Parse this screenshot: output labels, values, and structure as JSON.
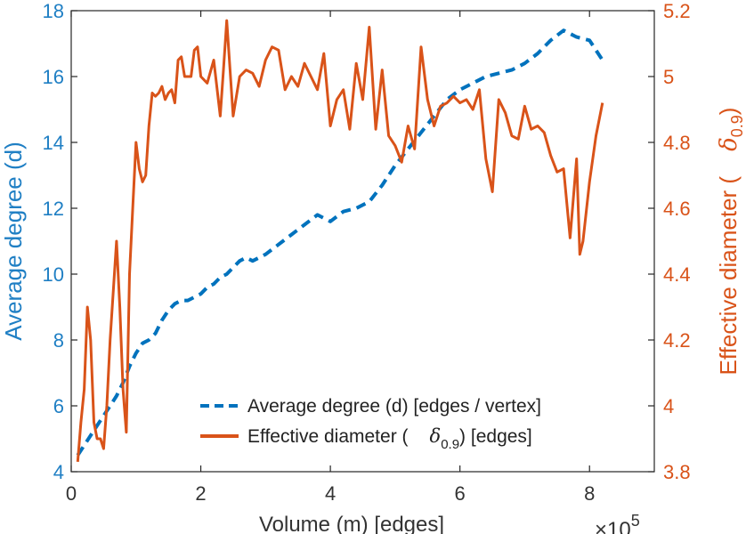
{
  "chart_data": {
    "type": "line",
    "title": "",
    "xlabel": "Volume (m) [edges]",
    "x_multiplier_label": "×10",
    "x_multiplier_exp": "5",
    "ylabel_left": "Average degree (d)",
    "ylabel_right_prefix": "Effective diameter (",
    "ylabel_right_symbol": "δ",
    "ylabel_right_subscript": "0.9",
    "ylabel_right_suffix": ")",
    "xlim": [
      0,
      9
    ],
    "ylim_left": [
      4,
      18
    ],
    "ylim_right": [
      3.8,
      5.2
    ],
    "x_ticks": [
      0,
      2,
      4,
      6,
      8
    ],
    "x_tick_labels": [
      "0",
      "2",
      "4",
      "6",
      "8"
    ],
    "y_left_ticks": [
      4,
      6,
      8,
      10,
      12,
      14,
      16,
      18
    ],
    "y_left_tick_labels": [
      "4",
      "6",
      "8",
      "10",
      "12",
      "14",
      "16",
      "18"
    ],
    "y_right_ticks": [
      3.8,
      4.0,
      4.2,
      4.4,
      4.6,
      4.8,
      5.0,
      5.2
    ],
    "y_right_tick_labels": [
      "3.8",
      "4",
      "4.2",
      "4.4",
      "4.6",
      "4.8",
      "5",
      "5.2"
    ],
    "legend_position": "bottom-right",
    "colors": {
      "left": "#1f7fc4",
      "right": "#d95319"
    },
    "series": [
      {
        "name": "Average degree (d) [edges / vertex]",
        "legend_main": "Average degree (d) [edges / vertex]",
        "axis": "left",
        "style": "dashed",
        "color": "#0072bd",
        "x": [
          0.1,
          0.2,
          0.3,
          0.4,
          0.5,
          0.6,
          0.7,
          0.8,
          0.9,
          1.0,
          1.1,
          1.2,
          1.3,
          1.4,
          1.5,
          1.6,
          1.7,
          1.8,
          1.9,
          2.0,
          2.1,
          2.2,
          2.3,
          2.4,
          2.5,
          2.6,
          2.7,
          2.8,
          2.9,
          3.0,
          3.2,
          3.4,
          3.6,
          3.8,
          4.0,
          4.2,
          4.4,
          4.6,
          4.8,
          5.0,
          5.2,
          5.4,
          5.6,
          5.8,
          6.0,
          6.2,
          6.4,
          6.6,
          6.8,
          7.0,
          7.2,
          7.4,
          7.6,
          7.7,
          7.8,
          8.0,
          8.1,
          8.2
        ],
        "values": [
          4.5,
          4.8,
          5.1,
          5.4,
          5.7,
          6.0,
          6.3,
          6.7,
          7.2,
          7.6,
          7.9,
          8.0,
          8.2,
          8.6,
          8.9,
          9.1,
          9.2,
          9.2,
          9.3,
          9.4,
          9.6,
          9.7,
          9.9,
          10.0,
          10.2,
          10.4,
          10.5,
          10.4,
          10.5,
          10.6,
          10.9,
          11.2,
          11.5,
          11.8,
          11.6,
          11.9,
          12.0,
          12.2,
          12.7,
          13.3,
          13.8,
          14.3,
          14.8,
          15.3,
          15.6,
          15.8,
          16.0,
          16.1,
          16.2,
          16.4,
          16.7,
          17.1,
          17.4,
          17.3,
          17.2,
          17.1,
          16.8,
          16.5
        ]
      },
      {
        "name": "Effective diameter (δ0.9) [edges]",
        "legend_prefix": "Effective diameter (",
        "legend_symbol": "δ",
        "legend_subscript": "0.9",
        "legend_suffix": ") [edges]",
        "axis": "right",
        "style": "solid",
        "color": "#d95319",
        "x": [
          0.1,
          0.15,
          0.2,
          0.25,
          0.3,
          0.35,
          0.4,
          0.45,
          0.5,
          0.55,
          0.6,
          0.65,
          0.7,
          0.75,
          0.8,
          0.85,
          0.9,
          0.95,
          1.0,
          1.05,
          1.1,
          1.15,
          1.2,
          1.25,
          1.3,
          1.35,
          1.4,
          1.45,
          1.5,
          1.55,
          1.6,
          1.65,
          1.7,
          1.75,
          1.8,
          1.85,
          1.9,
          1.95,
          2.0,
          2.1,
          2.2,
          2.3,
          2.35,
          2.4,
          2.5,
          2.6,
          2.7,
          2.8,
          2.9,
          3.0,
          3.1,
          3.2,
          3.3,
          3.4,
          3.5,
          3.6,
          3.7,
          3.8,
          3.9,
          4.0,
          4.1,
          4.2,
          4.3,
          4.4,
          4.5,
          4.6,
          4.7,
          4.8,
          4.9,
          5.0,
          5.1,
          5.2,
          5.3,
          5.4,
          5.5,
          5.6,
          5.7,
          5.8,
          5.9,
          6.0,
          6.1,
          6.2,
          6.3,
          6.4,
          6.5,
          6.6,
          6.7,
          6.8,
          6.9,
          7.0,
          7.1,
          7.2,
          7.3,
          7.4,
          7.5,
          7.6,
          7.7,
          7.8,
          7.85,
          7.9,
          8.0,
          8.1,
          8.2
        ],
        "values": [
          3.83,
          3.95,
          4.05,
          4.3,
          4.2,
          3.95,
          3.9,
          3.9,
          3.87,
          4.0,
          4.2,
          4.35,
          4.5,
          4.3,
          4.05,
          3.92,
          4.4,
          4.6,
          4.8,
          4.72,
          4.68,
          4.7,
          4.85,
          4.95,
          4.94,
          4.95,
          4.97,
          4.93,
          4.95,
          4.96,
          4.92,
          5.05,
          5.06,
          5.0,
          5.0,
          5.0,
          5.08,
          5.09,
          5.0,
          4.98,
          5.05,
          4.88,
          5.02,
          5.17,
          4.88,
          5.0,
          5.02,
          5.01,
          4.97,
          5.05,
          5.09,
          5.08,
          4.96,
          5.0,
          4.97,
          5.04,
          5.0,
          4.96,
          5.07,
          4.85,
          4.93,
          4.96,
          4.84,
          5.04,
          4.93,
          5.15,
          4.84,
          5.02,
          4.82,
          4.79,
          4.74,
          4.85,
          4.78,
          5.09,
          4.93,
          4.85,
          4.91,
          4.92,
          4.94,
          4.92,
          4.93,
          4.9,
          4.96,
          4.75,
          4.65,
          4.93,
          4.89,
          4.82,
          4.81,
          4.91,
          4.84,
          4.85,
          4.83,
          4.76,
          4.71,
          4.72,
          4.51,
          4.75,
          4.46,
          4.5,
          4.68,
          4.82,
          4.92
        ]
      }
    ]
  }
}
